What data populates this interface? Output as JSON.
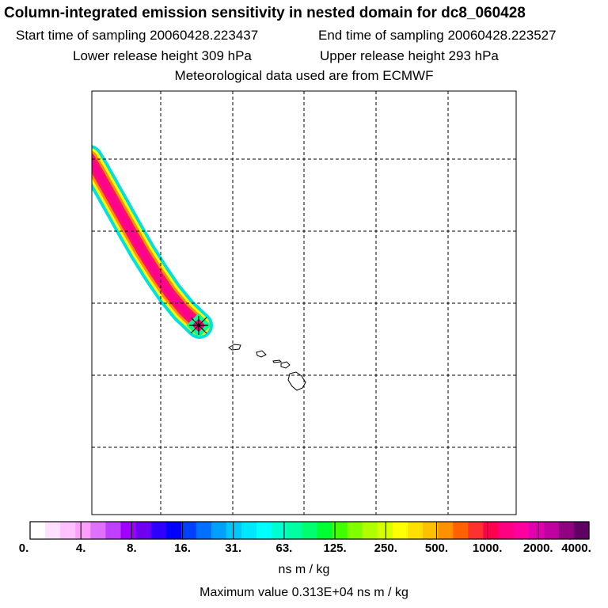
{
  "header": {
    "title": "Column-integrated emission sensitivity in nested domain for dc8_060428",
    "start_label": "Start time of sampling 20060428.223437",
    "end_label": "End time of sampling 20060428.223527",
    "lower_label": "Lower release height  309 hPa",
    "upper_label": "Upper release height  293 hPa",
    "met_label": "Meteorological data used are from ECMWF"
  },
  "colorbar": {
    "tick_labels": [
      "0.",
      "4.",
      "8.",
      "16.",
      "31.",
      "63.",
      "125.",
      "250.",
      "500.",
      "1000.",
      "2000.",
      "4000."
    ],
    "colors": [
      "#ffffff",
      "#ffe0ff",
      "#ffc0ff",
      "#ff9fff",
      "#e070ff",
      "#c040ff",
      "#a000ff",
      "#7000f0",
      "#3000ff",
      "#0000ff",
      "#0040ff",
      "#0070ff",
      "#00a0ff",
      "#00c8ff",
      "#00e8ff",
      "#00ffff",
      "#00ffd0",
      "#00ffa0",
      "#00ff70",
      "#00ff30",
      "#40ff00",
      "#80ff00",
      "#b0ff00",
      "#d8ff00",
      "#ffff00",
      "#ffe000",
      "#ffc000",
      "#ff9000",
      "#ff6000",
      "#ff3030",
      "#ff0050",
      "#ff0080",
      "#ff00a0",
      "#e000b0",
      "#c000a0",
      "#900080",
      "#600060"
    ],
    "units": "ns m / kg",
    "max_value_label": "Maximum value  0.313E+04 ns m / kg"
  },
  "map": {
    "grid_style": "dashed",
    "receptor_marker": "x-cross"
  }
}
